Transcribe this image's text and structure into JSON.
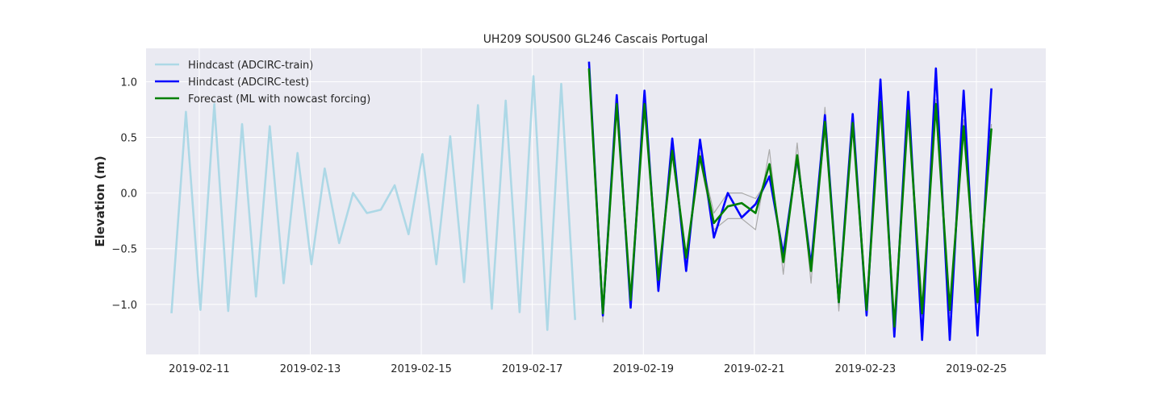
{
  "chart_data": {
    "type": "line",
    "title": "UH209 SOUS00 GL246 Cascais Portugal",
    "xlabel": "",
    "ylabel": "Elevation (m)",
    "xlim": [
      "2019-02-10T01:00",
      "2019-02-26T06:00"
    ],
    "ylim": [
      -1.45,
      1.3
    ],
    "x_ticks": [
      "2019-02-11",
      "2019-02-13",
      "2019-02-15",
      "2019-02-17",
      "2019-02-19",
      "2019-02-21",
      "2019-02-23",
      "2019-02-25"
    ],
    "y_ticks": [
      1.0,
      0.5,
      0.0,
      -0.5,
      -1.0
    ],
    "y_tick_labels": [
      "1.0",
      "0.5",
      "0.0",
      "−0.5",
      "−1.0"
    ],
    "grid": true,
    "legend_position": "top-left",
    "background": "#eaeaf2",
    "series": [
      {
        "name": "Hindcast (ADCIRC-train)",
        "color": "#add8e6",
        "x": [
          "2019-02-10T12:00",
          "2019-02-10T18:15",
          "2019-02-11T00:30",
          "2019-02-11T06:30",
          "2019-02-11T12:30",
          "2019-02-11T18:30",
          "2019-02-12T00:30",
          "2019-02-12T06:30",
          "2019-02-12T12:30",
          "2019-02-12T18:30",
          "2019-02-13T00:30",
          "2019-02-13T06:15",
          "2019-02-13T12:30",
          "2019-02-13T18:30",
          "2019-02-14T00:30",
          "2019-02-14T06:30",
          "2019-02-14T12:30",
          "2019-02-14T18:30",
          "2019-02-15T00:30",
          "2019-02-15T06:30",
          "2019-02-15T12:30",
          "2019-02-15T18:30",
          "2019-02-16T00:30",
          "2019-02-16T06:30",
          "2019-02-16T12:30",
          "2019-02-16T18:30",
          "2019-02-17T00:30",
          "2019-02-17T06:30",
          "2019-02-17T12:30",
          "2019-02-17T18:30"
        ],
        "values": [
          -1.08,
          0.73,
          -1.05,
          0.8,
          -1.06,
          0.62,
          -0.93,
          0.6,
          -0.81,
          0.36,
          -0.64,
          0.22,
          -0.45,
          0.0,
          -0.18,
          -0.15,
          0.07,
          -0.37,
          0.35,
          -0.64,
          0.51,
          -0.8,
          0.79,
          -1.04,
          0.83,
          -1.07,
          1.05,
          -1.23,
          0.98,
          -1.14
        ]
      },
      {
        "name": "Hindcast (ADCIRC-test)",
        "color": "#0000ff",
        "x": [
          "2019-02-18T00:30",
          "2019-02-18T06:30",
          "2019-02-18T12:30",
          "2019-02-18T18:30",
          "2019-02-19T00:30",
          "2019-02-19T06:30",
          "2019-02-19T12:30",
          "2019-02-19T18:30",
          "2019-02-20T00:30",
          "2019-02-20T06:30",
          "2019-02-20T12:30",
          "2019-02-20T18:30",
          "2019-02-21T00:30",
          "2019-02-21T06:30",
          "2019-02-21T12:30",
          "2019-02-21T18:30",
          "2019-02-22T00:30",
          "2019-02-22T06:30",
          "2019-02-22T12:30",
          "2019-02-22T18:30",
          "2019-02-23T00:30",
          "2019-02-23T06:30",
          "2019-02-23T12:30",
          "2019-02-23T18:30",
          "2019-02-24T00:30",
          "2019-02-24T06:30",
          "2019-02-24T12:30",
          "2019-02-24T18:30",
          "2019-02-25T00:30",
          "2019-02-25T06:30"
        ],
        "values": [
          1.18,
          -1.1,
          0.88,
          -1.03,
          0.92,
          -0.88,
          0.49,
          -0.7,
          0.48,
          -0.4,
          0.0,
          -0.22,
          -0.1,
          0.15,
          -0.55,
          0.32,
          -0.65,
          0.7,
          -0.98,
          0.71,
          -1.1,
          1.02,
          -1.29,
          0.91,
          -1.32,
          1.12,
          -1.32,
          0.92,
          -1.28,
          0.94
        ]
      },
      {
        "name": "Forecast (ML with nowcast forcing)",
        "color": "#008000",
        "x": [
          "2019-02-18T00:30",
          "2019-02-18T06:30",
          "2019-02-18T12:30",
          "2019-02-18T18:30",
          "2019-02-19T00:30",
          "2019-02-19T06:30",
          "2019-02-19T12:30",
          "2019-02-19T18:30",
          "2019-02-20T00:30",
          "2019-02-20T06:30",
          "2019-02-20T12:30",
          "2019-02-20T18:30",
          "2019-02-21T00:30",
          "2019-02-21T06:30",
          "2019-02-21T12:30",
          "2019-02-21T18:30",
          "2019-02-22T00:30",
          "2019-02-22T06:30",
          "2019-02-22T12:30",
          "2019-02-22T18:30",
          "2019-02-23T00:30",
          "2019-02-23T06:30",
          "2019-02-23T12:30",
          "2019-02-23T18:30",
          "2019-02-24T00:30",
          "2019-02-24T06:30",
          "2019-02-24T12:30",
          "2019-02-24T18:30",
          "2019-02-25T00:30",
          "2019-02-25T06:30"
        ],
        "values": [
          1.12,
          -1.08,
          0.8,
          -0.96,
          0.8,
          -0.78,
          0.38,
          -0.58,
          0.33,
          -0.27,
          -0.12,
          -0.09,
          -0.18,
          0.26,
          -0.62,
          0.34,
          -0.7,
          0.64,
          -0.98,
          0.63,
          -1.05,
          0.82,
          -1.2,
          0.74,
          -1.08,
          0.8,
          -1.05,
          0.6,
          -0.98,
          0.58
        ]
      },
      {
        "name": "",
        "color": "#aaaaaa",
        "x": [
          "2019-02-18T00:30",
          "2019-02-18T06:30",
          "2019-02-18T12:30",
          "2019-02-18T18:30",
          "2019-02-19T00:30",
          "2019-02-19T06:30",
          "2019-02-19T12:30",
          "2019-02-19T18:30",
          "2019-02-20T00:30",
          "2019-02-20T06:30",
          "2019-02-20T12:30",
          "2019-02-20T18:30",
          "2019-02-21T00:30",
          "2019-02-21T06:30",
          "2019-02-21T12:30",
          "2019-02-21T18:30",
          "2019-02-22T00:30",
          "2019-02-22T06:30",
          "2019-02-22T12:30",
          "2019-02-22T18:30",
          "2019-02-23T00:30",
          "2019-02-23T06:30",
          "2019-02-23T12:30",
          "2019-02-23T18:30",
          "2019-02-24T00:30",
          "2019-02-24T06:30",
          "2019-02-24T12:30",
          "2019-02-24T18:30",
          "2019-02-25T00:30",
          "2019-02-25T06:30"
        ],
        "values": [
          1.1,
          -1.16,
          0.78,
          -0.98,
          0.76,
          -0.75,
          0.33,
          -0.55,
          0.3,
          -0.33,
          -0.23,
          -0.23,
          -0.33,
          0.39,
          -0.73,
          0.45,
          -0.81,
          0.77,
          -1.06,
          0.62,
          -1.08,
          0.8,
          -1.18,
          0.7,
          -1.05,
          0.76,
          -1.02,
          0.55,
          -0.95,
          0.53
        ]
      },
      {
        "name": "",
        "color": "#aaaaaa",
        "x": [
          "2019-02-18T00:30",
          "2019-02-18T06:30",
          "2019-02-18T12:30",
          "2019-02-18T18:30",
          "2019-02-19T00:30",
          "2019-02-19T06:30",
          "2019-02-19T12:30",
          "2019-02-19T18:30",
          "2019-02-20T00:30",
          "2019-02-20T06:30",
          "2019-02-20T12:30",
          "2019-02-20T18:30",
          "2019-02-21T00:30",
          "2019-02-21T06:30",
          "2019-02-21T12:30",
          "2019-02-21T18:30",
          "2019-02-22T00:30",
          "2019-02-22T06:30",
          "2019-02-22T12:30",
          "2019-02-22T18:30",
          "2019-02-23T00:30",
          "2019-02-23T06:30",
          "2019-02-23T12:30",
          "2019-02-23T18:30",
          "2019-02-24T00:30",
          "2019-02-24T06:30",
          "2019-02-24T12:30",
          "2019-02-24T18:30",
          "2019-02-25T00:30",
          "2019-02-25T06:30"
        ],
        "values": [
          1.14,
          -1.05,
          0.82,
          -0.92,
          0.82,
          -0.8,
          0.42,
          -0.6,
          0.36,
          -0.18,
          0.0,
          0.0,
          -0.05,
          0.14,
          -0.52,
          0.26,
          -0.62,
          0.55,
          -0.9,
          0.66,
          -1.02,
          0.86,
          -1.22,
          0.78,
          -1.1,
          0.84,
          -1.08,
          0.66,
          -1.0,
          0.62
        ]
      }
    ]
  }
}
